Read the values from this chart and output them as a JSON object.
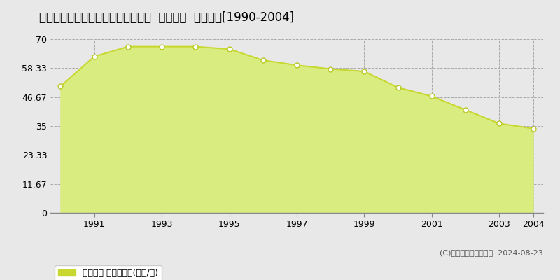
{
  "title": "三重県津市上弁財町２８２４番１外  地価公示  地価推移[1990-2004]",
  "years": [
    1990,
    1991,
    1992,
    1993,
    1994,
    1995,
    1996,
    1997,
    1998,
    1999,
    2000,
    2001,
    2002,
    2003,
    2004
  ],
  "values": [
    51.0,
    63.0,
    67.0,
    67.0,
    67.0,
    66.0,
    61.5,
    59.5,
    58.0,
    57.0,
    50.5,
    47.0,
    41.5,
    36.0,
    34.0
  ],
  "yticks": [
    0,
    11.67,
    23.33,
    35,
    46.67,
    58.33,
    70
  ],
  "ytick_labels": [
    "0",
    "11.67",
    "23.33",
    "35",
    "46.67",
    "58.33",
    "70"
  ],
  "xticks": [
    1991,
    1993,
    1995,
    1997,
    1999,
    2001,
    2003,
    2004
  ],
  "ylim": [
    0,
    70
  ],
  "xlim_start": 1989.7,
  "xlim_end": 2004.3,
  "line_color": "#c8d830",
  "fill_color": "#d8ec80",
  "marker_facecolor": "white",
  "marker_edgecolor": "#b8c820",
  "bg_color": "#e8e8e8",
  "plot_bg_color": "#e8e8e8",
  "grid_color": "#aaaaaa",
  "legend_label": "地価公示 平均坪単価(万円/坪)",
  "legend_color": "#c8d830",
  "copyright_text": "(C)土地価格ドットコム  2024-08-23",
  "title_fontsize": 12,
  "axis_fontsize": 9,
  "legend_fontsize": 9
}
